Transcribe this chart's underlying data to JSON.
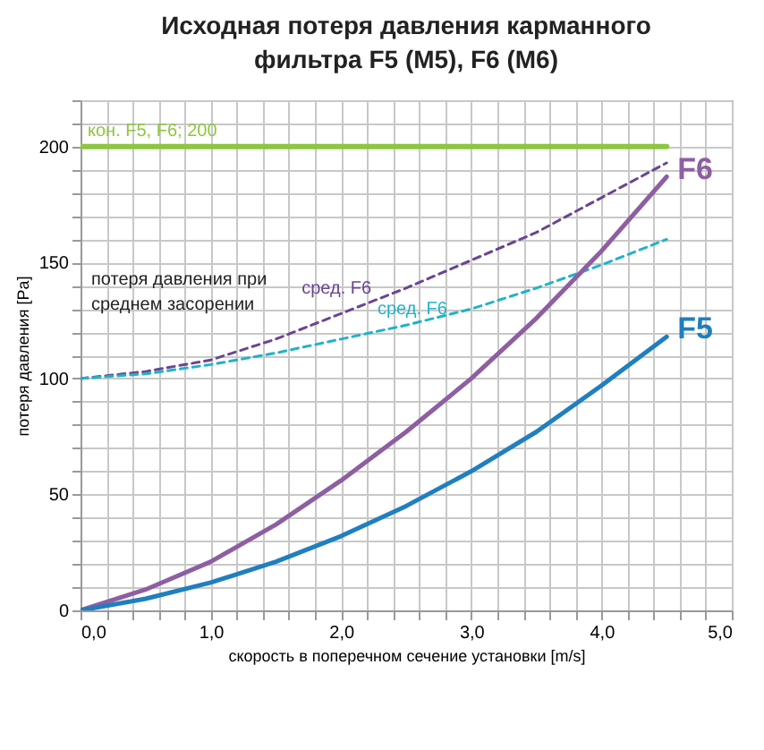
{
  "chart_data": {
    "type": "line",
    "title": "Исходная потеря давления карманного фильтра F5 (M5), F6 (M6)",
    "xlabel": "скорость в поперечном сечение установки [m/s]",
    "ylabel": "потеря давления [Pa]",
    "x": [
      0,
      0.5,
      1,
      1.5,
      2,
      2.5,
      3,
      3.5,
      4,
      4.5
    ],
    "series": [
      {
        "name": "кон. F5, F6; 200",
        "color": "#8dc63f",
        "x": [
          0,
          4.5
        ],
        "values": [
          200,
          200
        ],
        "line_style": "solid"
      },
      {
        "name": "сред. F6",
        "color": "#6a4591",
        "values": [
          100,
          103,
          108,
          117,
          128,
          139,
          151,
          163,
          178,
          193
        ],
        "line_style": "dashed"
      },
      {
        "name": "сред. F6",
        "color": "#1fb3c9",
        "values": [
          100,
          102,
          106,
          111,
          117,
          123,
          130,
          139,
          149,
          160
        ],
        "line_style": "dashed"
      },
      {
        "name": "F6",
        "color": "#8e5ea2",
        "values": [
          0,
          9,
          21,
          37,
          56,
          77,
          100,
          126,
          155,
          187
        ],
        "line_style": "solid"
      },
      {
        "name": "F5",
        "color": "#1f7fbf",
        "values": [
          0,
          5,
          12,
          21,
          32,
          45,
          60,
          77,
          97,
          118
        ],
        "line_style": "solid"
      }
    ],
    "annotations": [
      "потеря давления при среднем засорении"
    ],
    "xlim": [
      0,
      5
    ],
    "ylim": [
      0,
      220
    ],
    "xticks": [
      {
        "value": 0,
        "label": "0,0"
      },
      {
        "value": 0.2,
        "label": null
      },
      {
        "value": 0.4,
        "label": null
      },
      {
        "value": 0.6,
        "label": null
      },
      {
        "value": 0.8,
        "label": null
      },
      {
        "value": 1,
        "label": "1,0"
      },
      {
        "value": 1.2,
        "label": null
      },
      {
        "value": 1.4,
        "label": null
      },
      {
        "value": 1.6,
        "label": null
      },
      {
        "value": 1.8,
        "label": null
      },
      {
        "value": 2,
        "label": "2,0"
      },
      {
        "value": 2.2,
        "label": null
      },
      {
        "value": 2.4,
        "label": null
      },
      {
        "value": 2.6,
        "label": null
      },
      {
        "value": 2.8,
        "label": null
      },
      {
        "value": 3,
        "label": "3,0"
      },
      {
        "value": 3.2,
        "label": null
      },
      {
        "value": 3.4,
        "label": null
      },
      {
        "value": 3.6,
        "label": null
      },
      {
        "value": 3.8,
        "label": null
      },
      {
        "value": 4,
        "label": "4,0"
      },
      {
        "value": 4.2,
        "label": null
      },
      {
        "value": 4.4,
        "label": null
      },
      {
        "value": 4.6,
        "label": null
      },
      {
        "value": 4.8,
        "label": null
      },
      {
        "value": 5,
        "label": "5,0"
      }
    ],
    "yticks": [
      0,
      {
        "value": 10,
        "label": null
      },
      {
        "value": 20,
        "label": null
      },
      {
        "value": 30,
        "label": null
      },
      {
        "value": 40,
        "label": null
      },
      50,
      {
        "value": 60,
        "label": null
      },
      {
        "value": 70,
        "label": null
      },
      {
        "value": 80,
        "label": null
      },
      {
        "value": 90,
        "label": null
      },
      100,
      {
        "value": 110,
        "label": null
      },
      {
        "value": 120,
        "label": null
      },
      {
        "value": 130,
        "label": null
      },
      {
        "value": 140,
        "label": null
      },
      150,
      {
        "value": 160,
        "label": null
      },
      {
        "value": 170,
        "label": null
      },
      {
        "value": 180,
        "label": null
      },
      {
        "value": 190,
        "label": null
      },
      200,
      {
        "value": 210,
        "label": null
      },
      {
        "value": 220,
        "label": null
      }
    ],
    "grid": true,
    "legend": false,
    "marker": "none"
  }
}
